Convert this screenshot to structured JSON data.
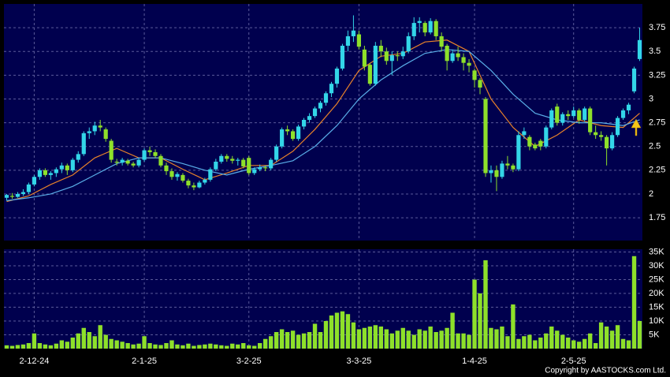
{
  "chart_data": {
    "type": "candlestick",
    "categories": [
      null,
      null,
      null,
      null,
      null,
      "2-12-24",
      null,
      null,
      null,
      null,
      null,
      null,
      null,
      null,
      null,
      null,
      null,
      null,
      null,
      null,
      null,
      null,
      null,
      null,
      null,
      "2-1-25",
      null,
      null,
      null,
      null,
      null,
      null,
      null,
      null,
      null,
      null,
      null,
      null,
      null,
      null,
      null,
      null,
      null,
      null,
      "3-2-25",
      null,
      null,
      null,
      null,
      null,
      null,
      null,
      null,
      null,
      null,
      null,
      null,
      null,
      null,
      null,
      null,
      null,
      null,
      null,
      "3-3-25",
      null,
      null,
      null,
      null,
      null,
      null,
      null,
      null,
      null,
      null,
      null,
      null,
      null,
      null,
      null,
      null,
      null,
      null,
      null,
      null,
      "1-4-25",
      null,
      null,
      null,
      null,
      null,
      null,
      null,
      null,
      null,
      null,
      null,
      null,
      null,
      null,
      null,
      null,
      null,
      "2-5-25",
      null,
      null,
      null,
      null,
      null,
      null,
      null,
      null,
      null,
      null,
      null,
      null
    ],
    "open": [
      1.96,
      1.98,
      1.97,
      2.0,
      2.02,
      2.1,
      2.18,
      2.25,
      2.2,
      2.22,
      2.26,
      2.3,
      2.25,
      2.36,
      2.42,
      2.64,
      2.66,
      2.72,
      2.68,
      2.56,
      2.34,
      2.33,
      2.35,
      2.32,
      2.3,
      2.36,
      2.46,
      2.44,
      2.4,
      2.3,
      2.24,
      2.18,
      2.2,
      2.14,
      2.09,
      2.07,
      2.12,
      2.15,
      2.26,
      2.34,
      2.4,
      2.37,
      2.35,
      2.36,
      2.38,
      2.22,
      2.26,
      2.28,
      2.27,
      2.36,
      2.5,
      2.68,
      2.66,
      2.58,
      2.71,
      2.78,
      2.82,
      2.9,
      2.96,
      3.06,
      3.16,
      3.32,
      3.56,
      3.66,
      3.68,
      3.52,
      3.36,
      3.16,
      3.56,
      3.5,
      3.4,
      3.46,
      3.45,
      3.5,
      3.66,
      3.8,
      3.8,
      3.7,
      3.82,
      3.66,
      3.56,
      3.4,
      3.48,
      3.44,
      3.38,
      3.3,
      3.2,
      3.0,
      2.22,
      2.25,
      2.18,
      2.32,
      2.3,
      2.26,
      2.62,
      2.6,
      2.52,
      2.56,
      2.5,
      2.7,
      2.92,
      2.75,
      2.84,
      2.82,
      2.88,
      2.78,
      2.9,
      2.65,
      2.62,
      2.6,
      2.48,
      2.62,
      2.8,
      2.88,
      3.08,
      3.42
    ],
    "high": [
      2.0,
      2.01,
      2.02,
      2.05,
      2.12,
      2.2,
      2.27,
      2.27,
      2.24,
      2.28,
      2.33,
      2.32,
      2.38,
      2.45,
      2.66,
      2.7,
      2.76,
      2.78,
      2.7,
      2.58,
      2.37,
      2.38,
      2.37,
      2.34,
      2.38,
      2.48,
      2.5,
      2.47,
      2.42,
      2.33,
      2.27,
      2.23,
      2.22,
      2.16,
      2.12,
      2.14,
      2.17,
      2.28,
      2.37,
      2.42,
      2.42,
      2.4,
      2.38,
      2.38,
      2.4,
      2.28,
      2.31,
      2.3,
      2.38,
      2.52,
      2.7,
      2.72,
      2.68,
      2.73,
      2.8,
      2.85,
      2.92,
      2.98,
      3.08,
      3.18,
      3.34,
      3.58,
      3.72,
      3.88,
      3.72,
      3.56,
      3.38,
      3.6,
      3.62,
      3.54,
      3.5,
      3.5,
      3.55,
      3.7,
      3.86,
      3.86,
      3.82,
      3.85,
      3.84,
      3.7,
      3.58,
      3.52,
      3.55,
      3.48,
      3.42,
      3.32,
      3.22,
      3.02,
      2.3,
      2.3,
      2.35,
      2.4,
      2.32,
      2.66,
      2.7,
      2.62,
      2.54,
      2.58,
      2.72,
      2.9,
      2.95,
      2.86,
      2.88,
      2.92,
      2.9,
      2.92,
      2.92,
      2.72,
      2.66,
      2.62,
      2.65,
      2.82,
      2.9,
      2.96,
      3.34,
      3.75
    ],
    "low": [
      1.93,
      1.95,
      1.96,
      1.98,
      2.0,
      2.08,
      2.15,
      2.18,
      2.15,
      2.18,
      2.22,
      2.2,
      2.23,
      2.33,
      2.4,
      2.58,
      2.62,
      2.66,
      2.55,
      2.33,
      2.3,
      2.3,
      2.3,
      2.28,
      2.28,
      2.34,
      2.4,
      2.38,
      2.28,
      2.2,
      2.15,
      2.14,
      2.12,
      2.06,
      2.04,
      2.06,
      2.1,
      2.13,
      2.24,
      2.32,
      2.34,
      2.32,
      2.3,
      2.27,
      2.2,
      2.2,
      2.24,
      2.24,
      2.25,
      2.34,
      2.48,
      2.62,
      2.56,
      2.56,
      2.68,
      2.75,
      2.8,
      2.86,
      2.93,
      3.02,
      3.12,
      3.3,
      3.5,
      3.6,
      3.52,
      3.3,
      3.14,
      3.14,
      3.44,
      3.36,
      3.25,
      3.4,
      3.42,
      3.48,
      3.62,
      3.7,
      3.66,
      3.68,
      3.62,
      3.5,
      3.3,
      3.38,
      3.4,
      3.3,
      3.28,
      3.12,
      3.05,
      2.18,
      2.12,
      2.03,
      2.16,
      2.26,
      2.23,
      2.24,
      2.58,
      2.46,
      2.46,
      2.46,
      2.48,
      2.68,
      2.72,
      2.72,
      2.78,
      2.8,
      2.74,
      2.76,
      2.62,
      2.58,
      2.56,
      2.3,
      2.46,
      2.6,
      2.78,
      2.84,
      3.06,
      3.4
    ],
    "close": [
      1.99,
      1.97,
      2.0,
      2.02,
      2.1,
      2.18,
      2.25,
      2.2,
      2.22,
      2.26,
      2.3,
      2.25,
      2.36,
      2.42,
      2.64,
      2.66,
      2.72,
      2.7,
      2.58,
      2.36,
      2.33,
      2.36,
      2.32,
      2.3,
      2.36,
      2.46,
      2.44,
      2.4,
      2.3,
      2.24,
      2.18,
      2.21,
      2.14,
      2.09,
      2.07,
      2.12,
      2.15,
      2.26,
      2.34,
      2.4,
      2.37,
      2.35,
      2.36,
      2.29,
      2.22,
      2.26,
      2.28,
      2.27,
      2.36,
      2.5,
      2.68,
      2.66,
      2.58,
      2.71,
      2.78,
      2.82,
      2.9,
      2.96,
      3.06,
      3.16,
      3.32,
      3.56,
      3.66,
      3.72,
      3.55,
      3.34,
      3.16,
      3.56,
      3.5,
      3.4,
      3.46,
      3.45,
      3.5,
      3.66,
      3.8,
      3.82,
      3.7,
      3.82,
      3.66,
      3.55,
      3.4,
      3.48,
      3.44,
      3.38,
      3.35,
      3.2,
      3.12,
      2.22,
      2.25,
      2.18,
      2.32,
      2.3,
      2.26,
      2.62,
      2.66,
      2.5,
      2.48,
      2.5,
      2.7,
      2.88,
      2.75,
      2.84,
      2.82,
      2.88,
      2.78,
      2.9,
      2.65,
      2.62,
      2.6,
      2.48,
      2.62,
      2.8,
      2.88,
      2.94,
      3.32,
      3.62
    ],
    "up_color": "#33d6e8",
    "down_color": "#8ee02a",
    "ylim": [
      1.51,
      4.0
    ],
    "yticks": [
      1.75,
      2,
      2.25,
      2.5,
      2.75,
      3,
      3.25,
      3.5,
      3.75
    ],
    "grid": true,
    "lines": [
      {
        "color": "#e8822a",
        "x": [
          0,
          4,
          8,
          12,
          16,
          20,
          24,
          28,
          32,
          36,
          40,
          44,
          48,
          52,
          56,
          60,
          64,
          68,
          72,
          76,
          80,
          84,
          88,
          92,
          96,
          100,
          104,
          108,
          112,
          115
        ],
        "values": [
          1.92,
          1.98,
          2.1,
          2.2,
          2.38,
          2.48,
          2.38,
          2.38,
          2.26,
          2.15,
          2.22,
          2.3,
          2.3,
          2.45,
          2.68,
          2.95,
          3.3,
          3.45,
          3.48,
          3.6,
          3.62,
          3.5,
          3.0,
          2.7,
          2.5,
          2.62,
          2.78,
          2.72,
          2.7,
          2.85
        ]
      },
      {
        "color": "#5aaee8",
        "x": [
          0,
          4,
          8,
          12,
          16,
          20,
          24,
          28,
          32,
          36,
          40,
          44,
          48,
          52,
          56,
          60,
          64,
          68,
          72,
          76,
          80,
          84,
          88,
          92,
          96,
          100,
          104,
          108,
          112,
          115
        ],
        "values": [
          1.93,
          1.96,
          2.0,
          2.08,
          2.2,
          2.32,
          2.38,
          2.38,
          2.32,
          2.25,
          2.2,
          2.26,
          2.3,
          2.35,
          2.5,
          2.72,
          3.0,
          3.2,
          3.35,
          3.48,
          3.52,
          3.5,
          3.3,
          3.05,
          2.85,
          2.78,
          2.75,
          2.75,
          2.72,
          2.78
        ]
      }
    ],
    "volume": {
      "color": "#8ee02a",
      "values": [
        1200,
        1000,
        1300,
        1500,
        2000,
        5500,
        2000,
        1500,
        1200,
        1800,
        3000,
        2500,
        4000,
        5500,
        7500,
        6000,
        4500,
        8500,
        5000,
        3500,
        3000,
        2500,
        2000,
        1500,
        1800,
        4500,
        2000,
        1500,
        1300,
        2000,
        3000,
        1500,
        1200,
        1800,
        1000,
        1300,
        1500,
        1800,
        1500,
        1200,
        1000,
        1800,
        1500,
        2000,
        1200,
        1000,
        2000,
        3500,
        4500,
        6000,
        7000,
        6000,
        6500,
        5000,
        5500,
        6000,
        9000,
        6000,
        10000,
        12000,
        13000,
        13500,
        12500,
        9500,
        7000,
        7500,
        8000,
        8500,
        8000,
        7000,
        5500,
        6500,
        7500,
        6500,
        5000,
        7000,
        6500,
        8000,
        6000,
        6500,
        7500,
        13000,
        5500,
        5500,
        5000,
        25000,
        20000,
        32000,
        7500,
        7000,
        8000,
        4500,
        16000,
        3500,
        4500,
        5000,
        3000,
        4000,
        5500,
        8000,
        6500,
        5000,
        4000,
        3000,
        2500,
        3500,
        5500,
        2000,
        9500,
        8000,
        6500,
        8500,
        3500,
        3000,
        33500,
        10000
      ],
      "ylim": [
        0,
        36000
      ],
      "yticks": [
        {
          "value": 5000,
          "label": "5K"
        },
        {
          "value": 10000,
          "label": "10K"
        },
        {
          "value": 15000,
          "label": "15K"
        },
        {
          "value": 20000,
          "label": "20K"
        },
        {
          "value": 25000,
          "label": "25K"
        },
        {
          "value": 30000,
          "label": "30K"
        },
        {
          "value": 35000,
          "label": "35K"
        }
      ]
    },
    "credit": "Copyright by AASTOCKS.com Ltd."
  }
}
